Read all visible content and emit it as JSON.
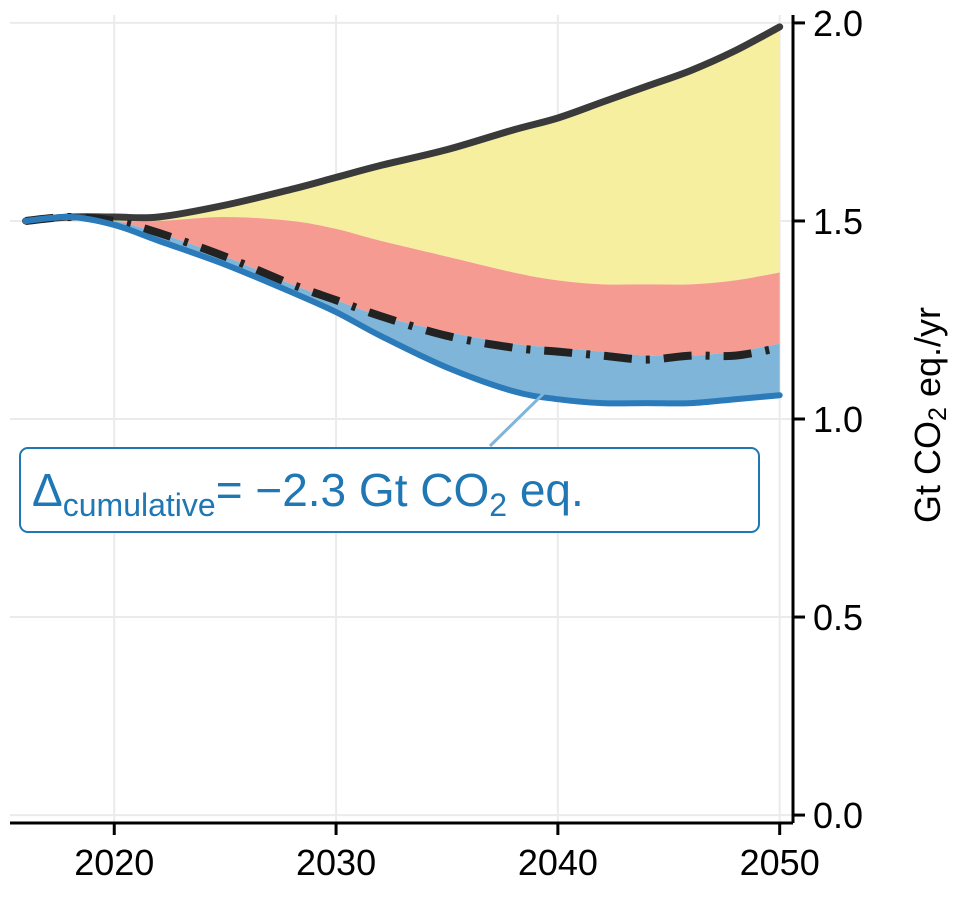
{
  "chart_data": {
    "type": "area",
    "title": "",
    "xlabel": "",
    "ylabel": {
      "pre": "Gt CO",
      "sub": "2",
      "post": " eq./yr"
    },
    "xlim": [
      2015.3,
      2050.6
    ],
    "ylim": [
      -0.02,
      2.02
    ],
    "xticks": [
      2020,
      2030,
      2040,
      2050
    ],
    "yticks": [
      0.0,
      0.5,
      1.0,
      1.5,
      2.0
    ],
    "ytick_labels": [
      "0.0",
      "0.5",
      "1.0",
      "1.5",
      "2.0"
    ],
    "grid": true,
    "x": [
      2016,
      2018,
      2020,
      2022,
      2025,
      2028,
      2030,
      2032,
      2035,
      2038,
      2040,
      2042,
      2044,
      2046,
      2048,
      2050
    ],
    "series": [
      {
        "key": "upper",
        "style": "solid",
        "color": "#3a3a3a",
        "values": [
          1.5,
          1.51,
          1.51,
          1.51,
          1.54,
          1.58,
          1.61,
          1.64,
          1.68,
          1.73,
          1.76,
          1.8,
          1.84,
          1.88,
          1.93,
          1.99
        ]
      },
      {
        "key": "red_top",
        "style": "none",
        "values": [
          1.5,
          1.51,
          1.5,
          1.5,
          1.51,
          1.5,
          1.48,
          1.45,
          1.41,
          1.37,
          1.35,
          1.34,
          1.34,
          1.34,
          1.35,
          1.37
        ]
      },
      {
        "key": "middle",
        "style": "dashdot",
        "color": "#222222",
        "values": [
          1.5,
          1.51,
          1.5,
          1.47,
          1.41,
          1.34,
          1.3,
          1.26,
          1.21,
          1.18,
          1.17,
          1.16,
          1.15,
          1.16,
          1.16,
          1.18
        ]
      },
      {
        "key": "blue_top",
        "style": "none",
        "values": [
          1.5,
          1.51,
          1.5,
          1.47,
          1.41,
          1.34,
          1.3,
          1.26,
          1.22,
          1.19,
          1.18,
          1.17,
          1.16,
          1.16,
          1.17,
          1.19
        ]
      },
      {
        "key": "lower",
        "style": "solid",
        "color": "#2b7bba",
        "values": [
          1.5,
          1.51,
          1.49,
          1.45,
          1.39,
          1.32,
          1.27,
          1.21,
          1.13,
          1.07,
          1.05,
          1.04,
          1.04,
          1.04,
          1.05,
          1.06
        ]
      }
    ],
    "bands": [
      {
        "from": "red_top",
        "to": "upper",
        "color": "#f6ef9f"
      },
      {
        "from": "blue_top",
        "to": "red_top",
        "color": "#f59b92"
      },
      {
        "from": "lower",
        "to": "blue_top",
        "color": "#7fb5d9"
      }
    ],
    "annotation": {
      "delta": "Δ",
      "sub": "cumulative",
      "text": "= −2.3 Gt CO",
      "sub2": "2",
      "text2": " eq.",
      "color": "#1f77b4",
      "arrow_to": [
        2040,
        1.12
      ]
    }
  }
}
